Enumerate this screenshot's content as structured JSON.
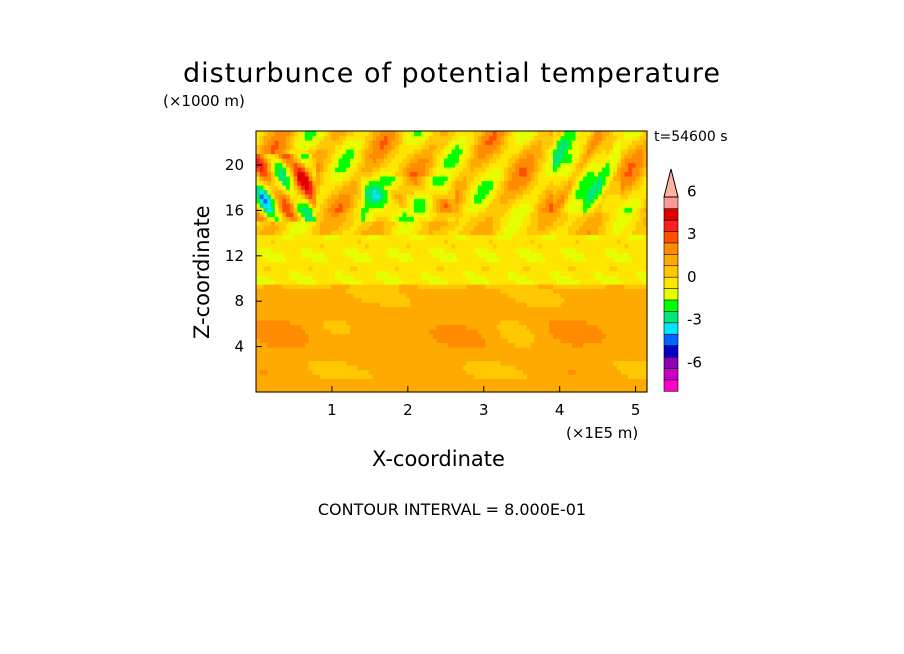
{
  "chart_data": {
    "type": "heatmap",
    "title": "disturbunce of potential temperature",
    "xlabel": "X-coordinate",
    "ylabel": "Z-coordinate",
    "x_unit_label": "(×1E5 m)",
    "y_unit_label": "(×1000 m)",
    "time_label": "t=54600 s",
    "footer": "CONTOUR INTERVAL = 8.000E-01",
    "xlim": [
      0,
      5.15
    ],
    "ylim": [
      0,
      23
    ],
    "x_ticks": [
      1,
      2,
      3,
      4,
      5
    ],
    "y_ticks": [
      4,
      8,
      12,
      16,
      20
    ],
    "colorbar": {
      "levels": [
        -8.0,
        -7.2,
        -6.4,
        -5.6,
        -4.8,
        -4.0,
        -3.2,
        -2.4,
        -1.6,
        -0.8,
        0,
        0.8,
        1.6,
        2.4,
        3.2,
        4.0,
        4.8,
        5.6,
        6.4,
        7.2,
        8.0
      ],
      "tick_values": [
        6,
        3,
        0,
        -3,
        -6
      ],
      "tick_labels": [
        "6",
        "3",
        "0",
        "-3",
        "-6"
      ],
      "colors": [
        "#ff00c8",
        "#c800c8",
        "#8c00b4",
        "#0000c8",
        "#0064ff",
        "#00e6ff",
        "#00e678",
        "#00ff00",
        "#e6ff00",
        "#ffe600",
        "#ffc800",
        "#ffaa00",
        "#ff8c00",
        "#ff5000",
        "#ff1e1e",
        "#e10000",
        "#ff9999",
        "#ffb4a0"
      ]
    },
    "description_bands": [
      {
        "z_range": [
          0,
          9
        ],
        "value": 0.9
      },
      {
        "z_range": [
          9,
          14
        ],
        "value": -0.5
      },
      {
        "z_range": [
          14,
          23
        ],
        "value": 0.2
      }
    ]
  }
}
